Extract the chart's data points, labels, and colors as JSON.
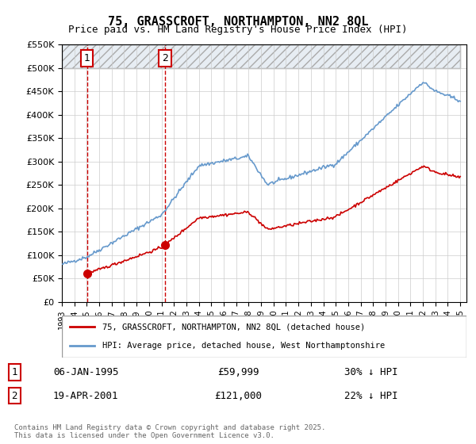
{
  "title": "75, GRASSCROFT, NORTHAMPTON, NN2 8QL",
  "subtitle": "Price paid vs. HM Land Registry's House Price Index (HPI)",
  "legend_line1": "75, GRASSCROFT, NORTHAMPTON, NN2 8QL (detached house)",
  "legend_line2": "HPI: Average price, detached house, West Northamptonshire",
  "sale1_label": "1",
  "sale1_date": "06-JAN-1995",
  "sale1_price": "£59,999",
  "sale1_hpi": "30% ↓ HPI",
  "sale1_x": 1995.02,
  "sale1_y": 59999,
  "sale2_label": "2",
  "sale2_date": "19-APR-2001",
  "sale2_price": "£121,000",
  "sale2_hpi": "22% ↓ HPI",
  "sale2_x": 2001.29,
  "sale2_y": 121000,
  "property_color": "#cc0000",
  "hpi_color": "#6699cc",
  "hatch_color": "#d0dde8",
  "background_color": "#ffffff",
  "grid_color": "#cccccc",
  "ylim": [
    0,
    550000
  ],
  "xlim": [
    1993.0,
    2025.5
  ],
  "footer": "Contains HM Land Registry data © Crown copyright and database right 2025.\nThis data is licensed under the Open Government Licence v3.0."
}
